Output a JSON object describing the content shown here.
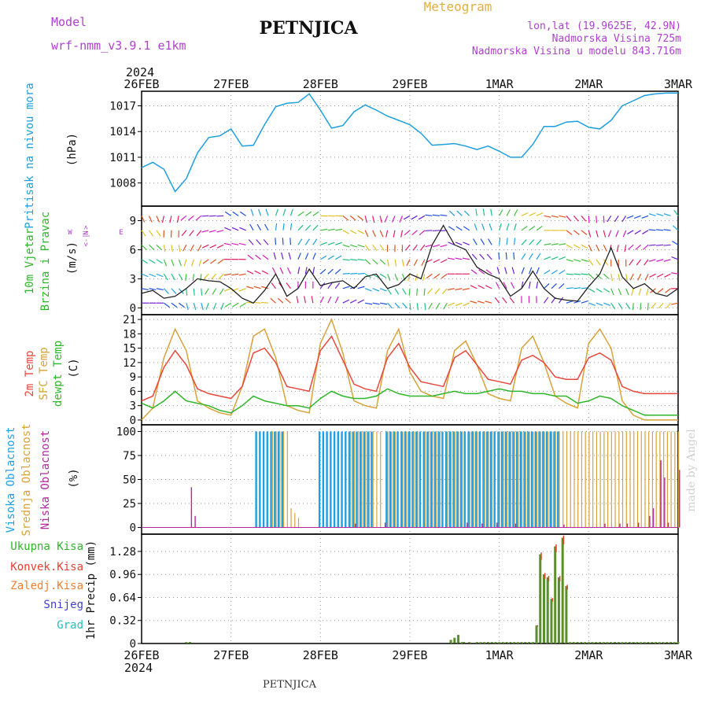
{
  "header": {
    "model_label": "Model",
    "model_name": "wrf-nmm_v3.9.1 e1km",
    "station": "PETNJICA",
    "product": "Meteogram",
    "lonlat": "lon,lat (19.9625E, 42.9N)",
    "elevation": "Nadmorska Visina 725m",
    "model_elevation": "Nadmorska Visina u modelu 843.716m",
    "footer_station": "PETNJICA",
    "watermark": "made by Angel"
  },
  "colors": {
    "pressure": "#1e9fe0",
    "temp2m": "#e8483c",
    "sfc": "#d8a23a",
    "dewpt": "#2fb52a",
    "high_cloud": "#1ea0e6",
    "mid_cloud": "#d8a23a",
    "low_cloud": "#b02aa0",
    "total_precip": "#5a8f2a",
    "conv_precip": "#e84030",
    "frozen": "#f08030",
    "snow": "#4040d0",
    "graupel": "#20c0c0",
    "purple_text": "#b040d0",
    "orange_text": "#e0b040"
  },
  "chart_data": [
    {
      "type": "line",
      "panel": "pressure",
      "ylabel_lines": [
        "Pritisak na nivou mora",
        "(hPa)"
      ],
      "x_year": "2024",
      "x_ticks": [
        "26FEB",
        "27FEB",
        "28FEB",
        "29FEB",
        "1MAR",
        "2MAR",
        "3MAR"
      ],
      "y_ticks": [
        1008,
        1011,
        1014,
        1017
      ],
      "ylim": [
        1005.3,
        1018.7
      ],
      "x_hours": [
        0,
        3,
        6,
        9,
        12,
        15,
        18,
        21,
        24,
        27,
        30,
        33,
        36,
        39,
        42,
        45,
        48,
        51,
        54,
        57,
        60,
        63,
        66,
        69,
        72,
        75,
        78,
        81,
        84,
        87,
        90,
        93,
        96,
        99,
        102,
        105,
        108,
        111,
        114,
        117,
        120,
        123,
        126,
        129,
        132,
        135,
        138,
        141,
        144,
        147,
        150
      ],
      "series": [
        {
          "values": [
            1009.8,
            1010.4,
            1009.6,
            1007.0,
            1008.5,
            1011.5,
            1013.3,
            1013.5,
            1014.3,
            1012.3,
            1012.4,
            1014.8,
            1016.9,
            1017.3,
            1017.4,
            1018.4,
            1016.5,
            1014.4,
            1014.7,
            1016.3,
            1017.1,
            1016.5,
            1015.8,
            1015.3,
            1014.8,
            1013.8,
            1012.4,
            1012.5,
            1012.6,
            1012.3,
            1011.9,
            1012.3,
            1011.7,
            1011.0,
            1011.0,
            1012.5,
            1014.6,
            1014.6,
            1015.1,
            1015.2,
            1014.5,
            1014.3,
            1015.3,
            1017.0,
            1017.6,
            1018.2,
            1018.4,
            1018.5,
            1018.5,
            1018.5,
            1018.5
          ]
        }
      ]
    },
    {
      "type": "line",
      "panel": "wind",
      "ylabel_lines": [
        "10m Vjetar",
        "Brzina i Pravac",
        "(m/s)"
      ],
      "compass_label": "N E S W",
      "y_ticks": [
        0,
        3,
        6,
        9
      ],
      "ylim": [
        -0.7,
        10.5
      ],
      "x_hours": [
        0,
        3,
        6,
        9,
        12,
        15,
        18,
        21,
        24,
        27,
        30,
        33,
        36,
        39,
        42,
        45,
        48,
        51,
        54,
        57,
        60,
        63,
        66,
        69,
        72,
        75,
        78,
        81,
        84,
        87,
        90,
        93,
        96,
        99,
        102,
        105,
        108,
        111,
        114,
        117,
        120,
        123,
        126,
        129,
        132,
        135,
        138,
        141,
        144,
        147,
        150
      ],
      "series": [
        {
          "name": "speed",
          "values": [
            1.5,
            1.8,
            1.0,
            1.2,
            2.0,
            3.0,
            2.8,
            2.7,
            2.0,
            1.0,
            0.5,
            1.8,
            3.5,
            1.2,
            2.0,
            4.0,
            2.3,
            2.6,
            2.8,
            2.0,
            3.2,
            3.5,
            2.0,
            2.4,
            3.5,
            3.0,
            6.5,
            8.5,
            6.5,
            6.0,
            4.2,
            3.5,
            3.0,
            1.2,
            2.0,
            3.8,
            2.0,
            1.0,
            0.8,
            0.7,
            2.2,
            3.5,
            6.2,
            3.2,
            2.0,
            2.5,
            1.5,
            1.2,
            2.0,
            2.0,
            2.0
          ]
        }
      ]
    },
    {
      "type": "line",
      "panel": "temperature",
      "ylabel_lines": [
        "2m Temp",
        "SFC Temp",
        "dewpt Temp",
        "(C)"
      ],
      "y_ticks": [
        0,
        3,
        6,
        9,
        12,
        15,
        18,
        21
      ],
      "ylim": [
        -1.0,
        22.0
      ],
      "x_hours": [
        0,
        3,
        6,
        9,
        12,
        15,
        18,
        21,
        24,
        27,
        30,
        33,
        36,
        39,
        42,
        45,
        48,
        51,
        54,
        57,
        60,
        63,
        66,
        69,
        72,
        75,
        78,
        81,
        84,
        87,
        90,
        93,
        96,
        99,
        102,
        105,
        108,
        111,
        114,
        117,
        120,
        123,
        126,
        129,
        132,
        135,
        138,
        141,
        144,
        147,
        150
      ],
      "series": [
        {
          "name": "2m Temp",
          "values": [
            4.0,
            5.0,
            11.0,
            14.5,
            11.5,
            6.5,
            5.5,
            5.0,
            4.5,
            7.0,
            14.0,
            15.0,
            12.0,
            7.0,
            6.5,
            6.0,
            14.5,
            17.5,
            12.5,
            7.5,
            6.5,
            6.0,
            13.0,
            16.0,
            11.0,
            8.0,
            7.5,
            7.0,
            13.0,
            14.5,
            11.5,
            8.5,
            8.0,
            7.5,
            12.5,
            13.5,
            12.0,
            9.0,
            8.5,
            8.5,
            13.0,
            14.0,
            12.5,
            7.0,
            6.0,
            5.5,
            5.5,
            5.5,
            5.5,
            5.5,
            5.5
          ]
        },
        {
          "name": "SFC Temp",
          "values": [
            0.0,
            2.5,
            13.0,
            19.0,
            14.5,
            4.0,
            2.5,
            1.5,
            1.0,
            7.0,
            17.5,
            19.0,
            13.0,
            3.0,
            2.0,
            1.5,
            16.0,
            21.0,
            14.0,
            4.0,
            3.0,
            2.5,
            14.5,
            19.0,
            10.0,
            6.0,
            5.0,
            4.5,
            14.5,
            16.5,
            11.5,
            5.5,
            4.5,
            4.0,
            15.0,
            17.5,
            12.0,
            5.0,
            3.5,
            2.5,
            16.0,
            19.0,
            15.0,
            4.0,
            1.0,
            0.0,
            0.0,
            0.0,
            0.0,
            0.0,
            0.0
          ]
        },
        {
          "name": "dewpt Temp",
          "values": [
            3.5,
            2.5,
            4.0,
            6.0,
            4.0,
            3.5,
            3.0,
            2.0,
            1.5,
            3.0,
            5.0,
            4.0,
            3.5,
            3.0,
            3.0,
            2.5,
            4.5,
            6.0,
            5.0,
            4.5,
            4.5,
            5.0,
            6.5,
            5.5,
            5.0,
            5.0,
            5.0,
            5.5,
            6.0,
            5.5,
            5.5,
            6.0,
            6.5,
            6.0,
            6.0,
            5.5,
            5.5,
            5.0,
            5.0,
            3.5,
            4.0,
            5.0,
            4.5,
            3.0,
            2.0,
            1.0,
            1.0,
            1.0,
            1.0,
            1.0,
            1.0
          ]
        }
      ]
    },
    {
      "type": "bar",
      "panel": "cloud",
      "ylabel_lines": [
        "Visoka Oblacnost",
        "Srednja Oblacnost",
        "Niska Oblacnost",
        "(%)"
      ],
      "y_ticks": [
        0,
        25,
        50,
        75,
        100
      ],
      "ylim": [
        -7,
        107
      ],
      "series": [
        {
          "name": "Visoka Oblacnost",
          "x_hours": [
            31,
            32,
            33,
            34,
            35,
            36,
            37,
            38,
            48,
            49,
            50,
            51,
            52,
            53,
            54,
            55,
            56,
            57,
            58,
            59,
            60,
            61,
            62,
            66,
            67,
            68,
            69,
            70,
            71,
            72,
            73,
            74,
            75,
            76,
            77,
            78,
            79,
            80,
            81,
            82,
            83,
            84,
            85,
            86,
            87,
            88,
            89,
            90,
            91,
            92,
            93,
            94,
            95,
            96,
            97,
            98,
            99,
            100,
            101,
            102,
            103,
            104,
            105,
            106,
            107,
            108,
            109,
            110,
            111,
            112
          ],
          "values": [
            100,
            100,
            100,
            100,
            100,
            100,
            100,
            100,
            100,
            100,
            100,
            100,
            100,
            100,
            100,
            100,
            100,
            100,
            100,
            100,
            100,
            100,
            100,
            100,
            100,
            100,
            100,
            100,
            100,
            100,
            100,
            100,
            100,
            100,
            100,
            100,
            100,
            100,
            100,
            100,
            100,
            100,
            100,
            100,
            100,
            100,
            100,
            100,
            100,
            100,
            100,
            100,
            100,
            100,
            100,
            100,
            100,
            100,
            100,
            100,
            100,
            100,
            100,
            100,
            100,
            100,
            100,
            100,
            100,
            100
          ]
        },
        {
          "name": "Srednja Oblacnost",
          "x_hours": [
            35,
            36,
            37,
            38,
            39,
            40,
            41,
            42,
            56,
            57,
            58,
            59,
            60,
            61,
            62,
            63,
            64,
            66,
            67,
            68,
            70,
            71,
            72,
            73,
            74,
            76,
            77,
            78,
            79,
            80,
            82,
            83,
            84,
            85,
            86,
            88,
            89,
            90,
            92,
            93,
            94,
            96,
            97,
            98,
            99,
            100,
            101,
            102,
            103,
            104,
            105,
            106,
            107,
            108,
            109,
            110,
            111,
            112,
            113,
            114,
            115,
            116,
            117,
            118,
            119,
            120,
            121,
            122,
            123,
            124,
            125,
            126,
            127,
            128,
            129,
            130,
            131,
            132,
            133,
            134,
            135,
            136,
            137,
            138,
            139,
            140,
            141,
            142,
            143,
            147,
            148,
            149
          ],
          "values": [
            100,
            100,
            100,
            100,
            100,
            20,
            15,
            10,
            100,
            100,
            100,
            100,
            100,
            100,
            100,
            100,
            100,
            100,
            100,
            100,
            100,
            100,
            100,
            100,
            100,
            100,
            100,
            100,
            100,
            100,
            100,
            100,
            100,
            100,
            100,
            100,
            100,
            100,
            100,
            100,
            100,
            100,
            100,
            100,
            100,
            100,
            100,
            100,
            100,
            100,
            100,
            100,
            100,
            100,
            100,
            100,
            100,
            100,
            100,
            100,
            100,
            100,
            100,
            100,
            100,
            100,
            100,
            100,
            100,
            100,
            100,
            100,
            100,
            100,
            100,
            100,
            100,
            100,
            100,
            100,
            100,
            100,
            100,
            100,
            100,
            100,
            100,
            100,
            100,
            5,
            38,
            100
          ]
        },
        {
          "name": "Niska Oblacnost",
          "x_hours": [
            13,
            14,
            57,
            65,
            87,
            91,
            95,
            100,
            113,
            124,
            128,
            130,
            133,
            136,
            137,
            139,
            140,
            141,
            144,
            147
          ],
          "values": [
            42,
            12,
            4,
            5,
            5,
            4,
            5,
            4,
            3,
            4,
            4,
            4,
            5,
            12,
            20,
            70,
            52,
            5,
            60,
            52
          ]
        }
      ]
    },
    {
      "type": "bar",
      "panel": "precip",
      "ylabel_lines": [
        "1hr Precip (mm)"
      ],
      "legend": [
        "Ukupna Kisa",
        "Konvek.Kisa",
        "Zaledj.Kisa",
        "Snijeg",
        "Grad"
      ],
      "y_ticks": [
        0,
        0.32,
        0.64,
        0.96,
        1.28
      ],
      "ylim": [
        0,
        1.52
      ],
      "series": [
        {
          "name": "Ukupna Kisa",
          "x_hours": [
            12,
            13,
            83,
            84,
            85,
            86,
            86.5,
            88,
            90,
            91,
            92,
            93,
            94,
            95,
            96,
            97,
            98,
            99,
            100,
            101,
            102,
            103,
            104,
            105,
            106,
            107,
            108,
            109,
            110,
            111,
            112,
            113,
            114,
            115,
            116,
            117,
            118,
            119,
            120,
            121,
            122,
            123,
            124,
            125,
            126,
            127,
            128,
            129,
            130,
            131,
            132,
            133,
            134,
            135,
            136,
            137,
            138,
            139,
            140,
            141,
            142,
            143,
            144,
            145,
            146,
            147,
            148,
            149,
            150
          ],
          "values": [
            0.02,
            0.02,
            0.05,
            0.08,
            0.12,
            0.02,
            0.02,
            0.02,
            0.02,
            0.02,
            0.02,
            0.02,
            0.02,
            0.02,
            0.02,
            0.02,
            0.02,
            0.02,
            0.02,
            0.02,
            0.02,
            0.02,
            0.02,
            0.02,
            0.02,
            0.02,
            0.02,
            0.02,
            0.02,
            0.02,
            0.02,
            0.02,
            0.02,
            0.02,
            0.02,
            0.02,
            0.02,
            0.02,
            0.02,
            0.02,
            0.02,
            0.02,
            0.02,
            0.02,
            0.02,
            0.02,
            0.02,
            0.02,
            0.02,
            0.02,
            0.02,
            0.02,
            0.02,
            0.02,
            0.02,
            0.02,
            0.02,
            0.02,
            0.02,
            0.02,
            0.02,
            0.02,
            0.02,
            0.02,
            0.02,
            0.02,
            0.02,
            0.02,
            0.02
          ]
        },
        {
          "name": "Konvek.Kisa",
          "x_hours": [
            106,
            107,
            108,
            109,
            110,
            111,
            112,
            113,
            114,
            115,
            116,
            117,
            118,
            119
          ],
          "values": [
            0.25,
            1.24,
            0.96,
            0.92,
            0.62,
            1.35,
            0.92,
            1.47,
            0.8,
            0.0,
            0.0,
            0.0,
            0.0,
            0.0
          ]
        }
      ]
    }
  ]
}
